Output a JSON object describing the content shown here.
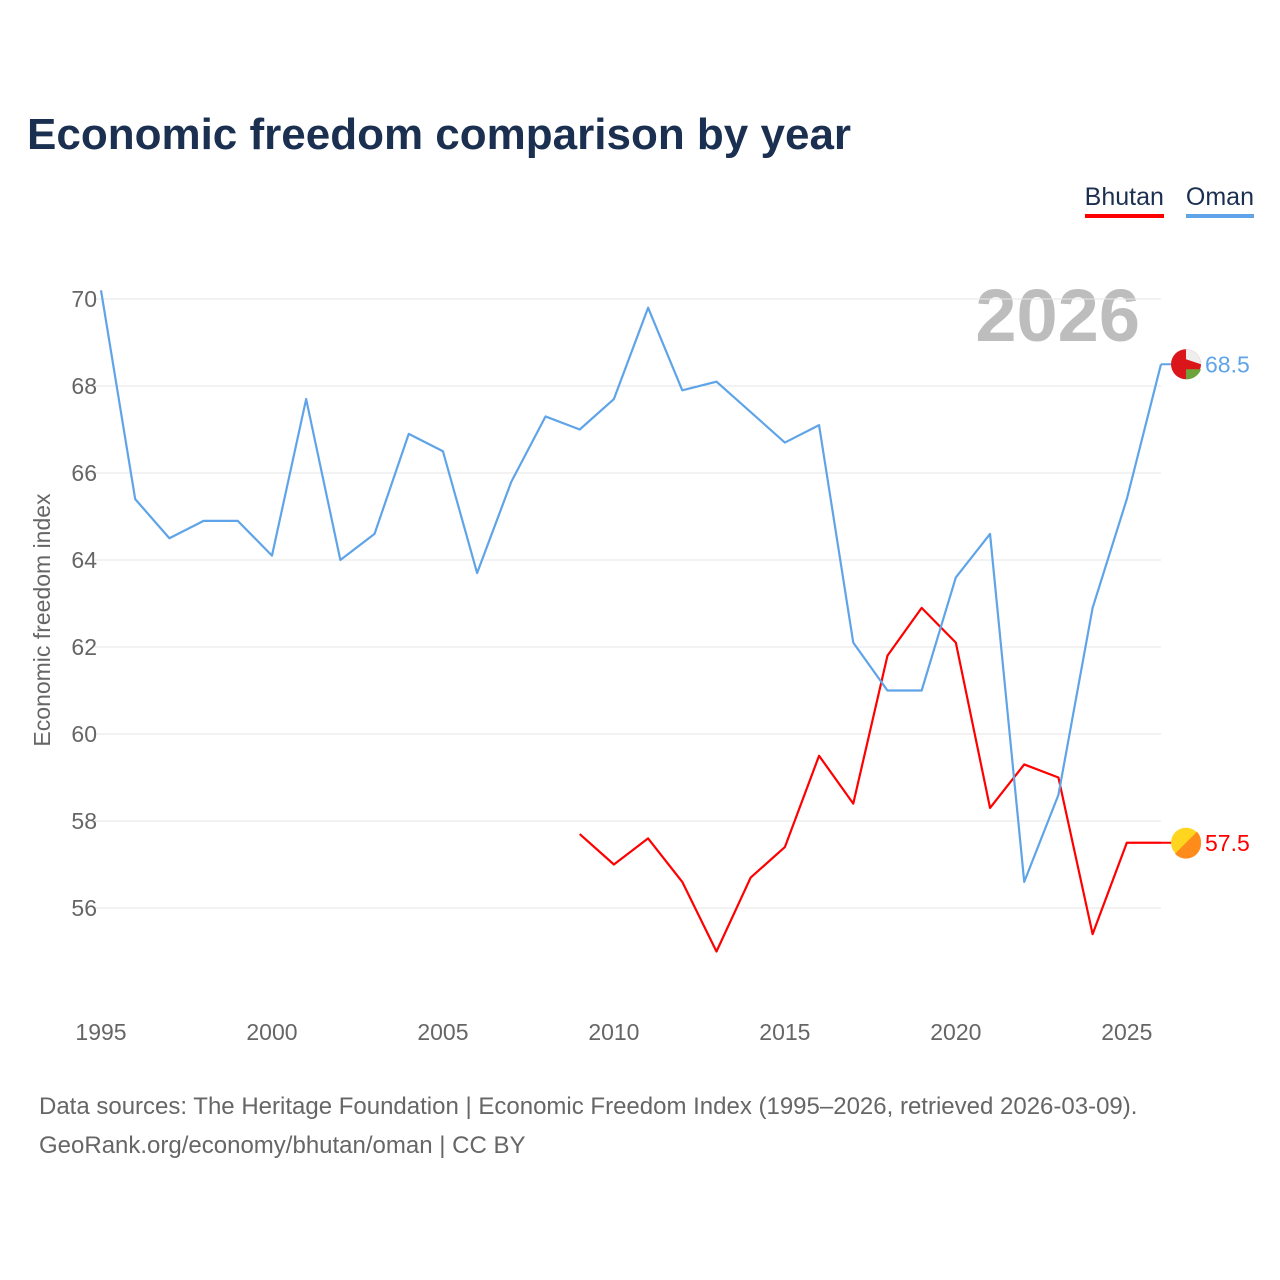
{
  "chart_data": {
    "type": "line",
    "title": "Economic freedom comparison by year",
    "ylabel": "Economic freedom index",
    "xlabel": "",
    "ylim": [
      54.5,
      70.5
    ],
    "xlim": [
      1995,
      2026
    ],
    "yticks": [
      56,
      58,
      60,
      62,
      64,
      66,
      68,
      70
    ],
    "xticks": [
      1995,
      2000,
      2005,
      2010,
      2015,
      2020,
      2025
    ],
    "year_watermark": "2026",
    "legend_position": "top-right",
    "grid": true,
    "series": [
      {
        "name": "Bhutan",
        "color": "#ff0000",
        "end_label": "57.5",
        "x": [
          2009,
          2010,
          2011,
          2012,
          2013,
          2014,
          2015,
          2016,
          2017,
          2018,
          2019,
          2020,
          2021,
          2022,
          2023,
          2024,
          2025,
          2026
        ],
        "values": [
          57.7,
          57.0,
          57.6,
          56.6,
          55.0,
          56.7,
          57.4,
          59.5,
          58.4,
          61.8,
          62.9,
          62.1,
          58.3,
          59.3,
          59.0,
          55.4,
          57.5,
          57.5
        ]
      },
      {
        "name": "Oman",
        "color": "#5fa4e8",
        "end_label": "68.5",
        "x": [
          1995,
          1996,
          1997,
          1998,
          1999,
          2000,
          2001,
          2002,
          2003,
          2004,
          2005,
          2006,
          2007,
          2008,
          2009,
          2010,
          2011,
          2012,
          2013,
          2014,
          2015,
          2016,
          2017,
          2018,
          2019,
          2020,
          2021,
          2022,
          2023,
          2024,
          2025,
          2026
        ],
        "values": [
          70.2,
          65.4,
          64.5,
          64.9,
          64.9,
          64.1,
          67.7,
          64.0,
          64.6,
          66.9,
          66.5,
          63.7,
          65.8,
          67.3,
          67.0,
          67.7,
          69.8,
          67.9,
          68.1,
          67.4,
          66.7,
          67.1,
          62.1,
          61.0,
          61.0,
          63.6,
          64.6,
          56.6,
          58.6,
          62.9,
          65.4,
          68.5
        ]
      }
    ]
  },
  "footer": {
    "line1": "Data sources: The Heritage Foundation | Economic Freedom Index (1995–2026, retrieved 2026-03-09).",
    "line2": "GeoRank.org/economy/bhutan/oman | CC BY"
  }
}
